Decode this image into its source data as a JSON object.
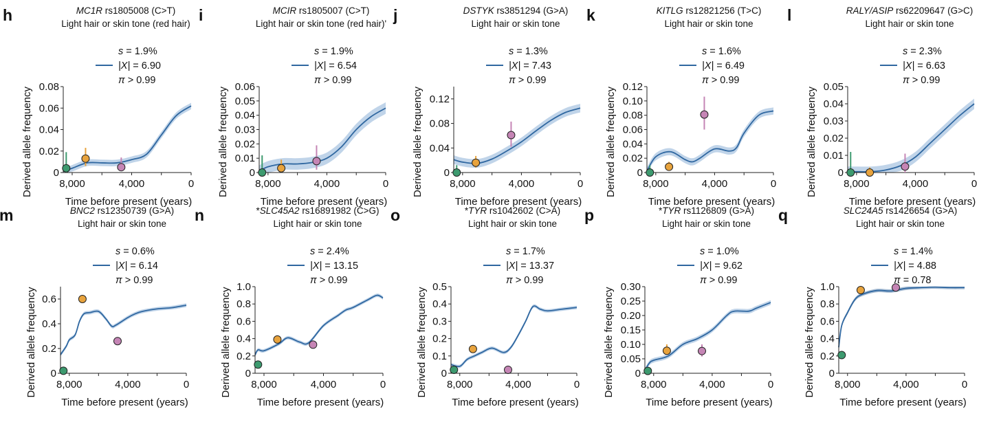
{
  "colors": {
    "line": "#2f67a0",
    "band": "#b9cfe7",
    "ancient_hg": "#3d9a6f",
    "farmer": "#e8a33d",
    "steppe": "#c585b5",
    "q_band": "#8a8a8a"
  },
  "chart_data": [
    {
      "type": "line",
      "panel": "h",
      "gene": "MC1R",
      "title_rest": " rs1805008 (C>T)",
      "subtitle": "Light hair or skin tone (red hair)",
      "stats": [
        "s = 1.9%",
        "|X| = 6.90",
        "π > 0.99"
      ],
      "xlabel": "Time before present (years)",
      "ylabel": "Derived allele frequency",
      "xlim": [
        8600,
        0
      ],
      "ylim": [
        0,
        0.08
      ],
      "xticks": [
        8000,
        4000,
        0
      ],
      "xtick_labels": [
        "8,000",
        "4,000",
        "0"
      ],
      "yticks": [
        0,
        0.02,
        0.04,
        0.06,
        0.08
      ],
      "ytick_labels": [
        "0",
        "0.02",
        "0.04",
        "0.06",
        "0.08"
      ],
      "curve": {
        "x": [
          8600,
          8000,
          7000,
          6000,
          5000,
          4000,
          3000,
          2000,
          1000,
          0
        ],
        "y": [
          0.001,
          0.004,
          0.009,
          0.009,
          0.009,
          0.012,
          0.017,
          0.035,
          0.053,
          0.062
        ],
        "ci_halfwidth": 0.003
      },
      "points": [
        {
          "x": 8400,
          "y": 0.004,
          "lo": 0,
          "hi": 0.019,
          "group": "ancient_hg"
        },
        {
          "x": 7100,
          "y": 0.013,
          "lo": 0.006,
          "hi": 0.023,
          "group": "farmer"
        },
        {
          "x": 4700,
          "y": 0.005,
          "lo": 0.002,
          "hi": 0.014,
          "group": "steppe"
        }
      ]
    },
    {
      "type": "line",
      "panel": "i",
      "gene": "MCIR",
      "title_rest": " rs1805007 (C>T)",
      "subtitle": "Light hair or skin tone (red hair)'",
      "stats": [
        "s = 1.9%",
        "|X| = 6.54",
        "π > 0.99"
      ],
      "xlabel": "Time before present (years)",
      "ylabel": "Derived allele frequency",
      "xlim": [
        8600,
        0
      ],
      "ylim": [
        0,
        0.06
      ],
      "xticks": [
        8000,
        4000,
        0
      ],
      "xtick_labels": [
        "8,000",
        "4,000",
        "0"
      ],
      "yticks": [
        0,
        0.01,
        0.02,
        0.03,
        0.04,
        0.05,
        0.06
      ],
      "ytick_labels": [
        "0",
        "0.01",
        "0.02",
        "0.03",
        "0.04",
        "0.05",
        "0.06"
      ],
      "curve": {
        "x": [
          8600,
          8000,
          7000,
          6000,
          5000,
          4000,
          3000,
          2000,
          1000,
          0
        ],
        "y": [
          0.001,
          0.004,
          0.006,
          0.006,
          0.007,
          0.01,
          0.018,
          0.03,
          0.039,
          0.045
        ],
        "ci_halfwidth": 0.004
      },
      "points": [
        {
          "x": 8400,
          "y": 0,
          "lo": 0,
          "hi": 0.012,
          "group": "ancient_hg"
        },
        {
          "x": 7100,
          "y": 0.003,
          "lo": 0.001,
          "hi": 0.009,
          "group": "farmer"
        },
        {
          "x": 4700,
          "y": 0.008,
          "lo": 0.002,
          "hi": 0.019,
          "group": "steppe"
        }
      ]
    },
    {
      "type": "line",
      "panel": "j",
      "gene": "DSTYK",
      "title_rest": " rs3851294 (G>A)",
      "subtitle": "Light hair or skin tone",
      "stats": [
        "s = 1.3%",
        "|X| = 7.43",
        "π > 0.99"
      ],
      "xlabel": "Time before present (years)",
      "ylabel": "Derived allele frequency",
      "xlim": [
        8600,
        0
      ],
      "ylim": [
        0,
        0.14
      ],
      "xticks": [
        8000,
        4000,
        0
      ],
      "xtick_labels": [
        "8,000",
        "4,000",
        "0"
      ],
      "yticks": [
        0,
        0.04,
        0.08,
        0.12
      ],
      "ytick_labels": [
        "0",
        "0.04",
        "0.08",
        "0.12"
      ],
      "curve": {
        "x": [
          8600,
          8000,
          7000,
          6000,
          5000,
          4000,
          3000,
          2000,
          1000,
          0
        ],
        "y": [
          0.021,
          0.017,
          0.015,
          0.022,
          0.035,
          0.05,
          0.068,
          0.085,
          0.098,
          0.105
        ],
        "ci_halfwidth": 0.007
      },
      "points": [
        {
          "x": 8400,
          "y": 0,
          "lo": 0,
          "hi": 0.012,
          "group": "ancient_hg"
        },
        {
          "x": 7100,
          "y": 0.016,
          "lo": 0.008,
          "hi": 0.027,
          "group": "farmer"
        },
        {
          "x": 4700,
          "y": 0.061,
          "lo": 0.042,
          "hi": 0.083,
          "group": "steppe"
        }
      ]
    },
    {
      "type": "line",
      "panel": "k",
      "gene": "KITLG",
      "title_rest": " rs12821256 (T>C)",
      "subtitle": "Light hair or skin tone",
      "stats": [
        "s = 1.6%",
        "|X| = 6.49",
        "π > 0.99"
      ],
      "xlabel": "Time before present (years)",
      "ylabel": "Derived allele frequency",
      "xlim": [
        8600,
        0
      ],
      "ylim": [
        0,
        0.12
      ],
      "xticks": [
        8000,
        4000,
        0
      ],
      "xtick_labels": [
        "8,000",
        "4,000",
        "0"
      ],
      "yticks": [
        0,
        0.02,
        0.04,
        0.06,
        0.08,
        0.1,
        0.12
      ],
      "ytick_labels": [
        "0",
        "0.02",
        "0.04",
        "0.06",
        "0.08",
        "0.10",
        "0.12"
      ],
      "curve": {
        "x": [
          8600,
          8000,
          7000,
          6000,
          5500,
          5000,
          4000,
          3000,
          2500,
          2000,
          1000,
          0
        ],
        "y": [
          0.002,
          0.022,
          0.029,
          0.018,
          0.015,
          0.02,
          0.033,
          0.03,
          0.035,
          0.055,
          0.08,
          0.086
        ],
        "ci_halfwidth": 0.005
      },
      "points": [
        {
          "x": 8400,
          "y": 0,
          "lo": 0,
          "hi": 0.01,
          "group": "ancient_hg"
        },
        {
          "x": 7100,
          "y": 0.008,
          "lo": 0.003,
          "hi": 0.015,
          "group": "farmer"
        },
        {
          "x": 4700,
          "y": 0.081,
          "lo": 0.06,
          "hi": 0.106,
          "group": "steppe"
        }
      ]
    },
    {
      "type": "line",
      "panel": "l",
      "gene": "RALY/ASIP",
      "title_rest": " rs62209647 (G>C)",
      "subtitle": "Light hair or skin tone",
      "stats": [
        "s = 2.3%",
        "|X| = 6.63",
        "π > 0.99"
      ],
      "xlabel": "Time before present (years)",
      "ylabel": "Derived allele frequency",
      "xlim": [
        8600,
        0
      ],
      "ylim": [
        0,
        0.05
      ],
      "xticks": [
        8000,
        4000,
        0
      ],
      "xtick_labels": [
        "8,000",
        "4,000",
        "0"
      ],
      "yticks": [
        0,
        0.01,
        0.02,
        0.03,
        0.04,
        0.05
      ],
      "ytick_labels": [
        "0",
        "0.01",
        "0.02",
        "0.03",
        "0.04",
        "0.05"
      ],
      "curve": {
        "x": [
          8600,
          8000,
          7000,
          6000,
          5000,
          4000,
          3000,
          2000,
          1000,
          0
        ],
        "y": [
          0.0005,
          0.0005,
          0.0005,
          0.0015,
          0.004,
          0.009,
          0.017,
          0.025,
          0.033,
          0.04
        ],
        "ci_halfwidth": 0.003
      },
      "points": [
        {
          "x": 8400,
          "y": 0,
          "lo": 0,
          "hi": 0.012,
          "group": "ancient_hg"
        },
        {
          "x": 7100,
          "y": 0,
          "lo": 0,
          "hi": 0.003,
          "group": "farmer"
        },
        {
          "x": 4700,
          "y": 0.0035,
          "lo": 0,
          "hi": 0.011,
          "group": "steppe"
        }
      ]
    },
    {
      "type": "line",
      "panel": "m",
      "gene": "BNC2",
      "title_rest": " rs12350739 (G>A)",
      "subtitle": "Light hair or skin tone",
      "stats": [
        "s = 0.6%",
        "|X| = 6.14",
        "π > 0.99"
      ],
      "xlabel": "Time before present (years)",
      "ylabel": "Derived allele frequency",
      "xlim": [
        8600,
        0
      ],
      "ylim": [
        0,
        0.7
      ],
      "xticks": [
        8000,
        4000,
        0
      ],
      "xtick_labels": [
        "8,000",
        "4,000",
        "0"
      ],
      "yticks": [
        0,
        0.2,
        0.4,
        0.6
      ],
      "ytick_labels": [
        "0",
        "0.2",
        "0.4",
        "0.6"
      ],
      "curve": {
        "x": [
          8600,
          8200,
          8000,
          7600,
          7300,
          7000,
          6600,
          6000,
          5500,
          5100,
          4800,
          4000,
          3500,
          3000,
          2000,
          1000,
          0
        ],
        "y": [
          0.15,
          0.22,
          0.27,
          0.31,
          0.42,
          0.48,
          0.49,
          0.5,
          0.44,
          0.38,
          0.39,
          0.45,
          0.48,
          0.5,
          0.52,
          0.53,
          0.55
        ],
        "ci_halfwidth": 0.015
      },
      "points": [
        {
          "x": 8400,
          "y": 0.02,
          "lo": 0.01,
          "hi": 0.03,
          "group": "ancient_hg"
        },
        {
          "x": 7100,
          "y": 0.6,
          "lo": 0.59,
          "hi": 0.61,
          "group": "farmer"
        },
        {
          "x": 4700,
          "y": 0.26,
          "lo": 0.24,
          "hi": 0.28,
          "group": "steppe"
        }
      ]
    },
    {
      "type": "line",
      "panel": "n",
      "gene": "SLC45A2",
      "title_prefix": "*",
      "title_rest": " rs16891982 (C>G)",
      "subtitle": "Light hair or skin tone",
      "stats": [
        "s = 2.4%",
        "|X| = 13.15",
        "π > 0.99"
      ],
      "xlabel": "Time before present (years)",
      "ylabel": "Derived allele frequency",
      "xlim": [
        8600,
        0
      ],
      "ylim": [
        0,
        1.0
      ],
      "xticks": [
        8000,
        4000,
        0
      ],
      "xtick_labels": [
        "8,000",
        "4,000",
        "0"
      ],
      "yticks": [
        0,
        0.2,
        0.4,
        0.6,
        0.8,
        1.0
      ],
      "ytick_labels": [
        "0",
        "0.2",
        "0.4",
        "0.6",
        "0.8",
        "1.0"
      ],
      "curve": {
        "x": [
          8600,
          8400,
          8000,
          7000,
          6400,
          5600,
          5000,
          4000,
          3000,
          2500,
          2000,
          1000,
          400,
          0
        ],
        "y": [
          0.21,
          0.27,
          0.26,
          0.34,
          0.41,
          0.36,
          0.35,
          0.55,
          0.67,
          0.73,
          0.76,
          0.85,
          0.9,
          0.87
        ],
        "ci_halfwidth": 0.02
      },
      "points": [
        {
          "x": 8400,
          "y": 0.1,
          "lo": 0.09,
          "hi": 0.11,
          "group": "ancient_hg"
        },
        {
          "x": 7100,
          "y": 0.39,
          "lo": 0.38,
          "hi": 0.4,
          "group": "farmer"
        },
        {
          "x": 4700,
          "y": 0.33,
          "lo": 0.32,
          "hi": 0.34,
          "group": "steppe"
        }
      ]
    },
    {
      "type": "line",
      "panel": "o",
      "gene": "TYR",
      "title_prefix": "*",
      "title_rest": " rs1042602 (C>A)",
      "subtitle": "Light hair or skin tone",
      "stats": [
        "s = 1.7%",
        "|X| = 13.37",
        "π > 0.99"
      ],
      "xlabel": "Time before present (years)",
      "ylabel": "Derived allele frequency",
      "xlim": [
        8600,
        0
      ],
      "ylim": [
        0,
        0.5
      ],
      "xticks": [
        8000,
        4000,
        0
      ],
      "xtick_labels": [
        "8,000",
        "4,000",
        "0"
      ],
      "yticks": [
        0,
        0.1,
        0.2,
        0.3,
        0.4,
        0.5
      ],
      "ytick_labels": [
        "0",
        "0.1",
        "0.2",
        "0.3",
        "0.4",
        "0.5"
      ],
      "curve": {
        "x": [
          8600,
          8000,
          7500,
          7000,
          6500,
          5800,
          5000,
          4500,
          4000,
          3500,
          3000,
          2500,
          2000,
          1000,
          0
        ],
        "y": [
          0.05,
          0.04,
          0.08,
          0.1,
          0.12,
          0.145,
          0.12,
          0.15,
          0.22,
          0.3,
          0.385,
          0.37,
          0.36,
          0.37,
          0.38
        ],
        "ci_halfwidth": 0.01
      },
      "points": [
        {
          "x": 8400,
          "y": 0.02,
          "lo": 0.015,
          "hi": 0.025,
          "group": "ancient_hg"
        },
        {
          "x": 7100,
          "y": 0.14,
          "lo": 0.13,
          "hi": 0.15,
          "group": "farmer"
        },
        {
          "x": 4700,
          "y": 0.02,
          "lo": 0.015,
          "hi": 0.025,
          "group": "steppe"
        }
      ]
    },
    {
      "type": "line",
      "panel": "p",
      "gene": "TYR",
      "title_prefix": "*",
      "title_rest": " rs1126809 (G>A)",
      "subtitle": "Light hair or skin tone",
      "stats": [
        "s = 1.0%",
        "|X| = 9.62",
        "π > 0.99"
      ],
      "xlabel": "Time before present (years)",
      "ylabel": "Derived allele frequency",
      "xlim": [
        8600,
        0
      ],
      "ylim": [
        0,
        0.3
      ],
      "xticks": [
        8000,
        4000,
        0
      ],
      "xtick_labels": [
        "8,000",
        "4,000",
        "0"
      ],
      "yticks": [
        0,
        0.05,
        0.1,
        0.15,
        0.2,
        0.25,
        0.3
      ],
      "ytick_labels": [
        "0",
        "0.05",
        "0.10",
        "0.15",
        "0.20",
        "0.25",
        "0.30"
      ],
      "curve": {
        "x": [
          8600,
          8300,
          8000,
          7000,
          6000,
          5000,
          4000,
          3000,
          2500,
          1500,
          1000,
          0
        ],
        "y": [
          0.01,
          0.035,
          0.045,
          0.06,
          0.1,
          0.12,
          0.15,
          0.2,
          0.215,
          0.215,
          0.225,
          0.245
        ],
        "ci_halfwidth": 0.008
      },
      "points": [
        {
          "x": 8400,
          "y": 0.008,
          "lo": 0.003,
          "hi": 0.015,
          "group": "ancient_hg"
        },
        {
          "x": 7100,
          "y": 0.078,
          "lo": 0.065,
          "hi": 0.1,
          "group": "farmer"
        },
        {
          "x": 4700,
          "y": 0.077,
          "lo": 0.058,
          "hi": 0.1,
          "group": "steppe"
        }
      ]
    },
    {
      "type": "line",
      "panel": "q",
      "gene": "SLC24A5",
      "title_rest": " rs1426654 (G>A)",
      "subtitle": "Light hair or skin tone",
      "stats": [
        "s = 1.4%",
        "|X| = 4.88",
        "π = 0.78"
      ],
      "xlabel": "Time before present (years)",
      "ylabel": "Derived allele frequency",
      "xlim": [
        8600,
        0
      ],
      "ylim": [
        0,
        1.0
      ],
      "xticks": [
        8000,
        4000,
        0
      ],
      "xtick_labels": [
        "8,000",
        "4,000",
        "0"
      ],
      "yticks": [
        0,
        0.2,
        0.4,
        0.6,
        0.8,
        1.0
      ],
      "ytick_labels": [
        "0",
        "0.2",
        "0.4",
        "0.6",
        "0.8",
        "1.0"
      ],
      "curve": {
        "x": [
          8600,
          8400,
          8000,
          7500,
          7000,
          6000,
          5000,
          4000,
          3000,
          2000,
          1000,
          0
        ],
        "y": [
          0.3,
          0.55,
          0.7,
          0.85,
          0.91,
          0.955,
          0.95,
          0.98,
          0.99,
          0.995,
          0.99,
          0.99
        ],
        "ci_halfwidth": 0.02
      },
      "points": [
        {
          "x": 8400,
          "y": 0.21,
          "lo": 0.18,
          "hi": 0.25,
          "group": "ancient_hg"
        },
        {
          "x": 7100,
          "y": 0.96,
          "lo": 0.95,
          "hi": 0.97,
          "group": "farmer"
        },
        {
          "x": 4700,
          "y": 0.99,
          "lo": 0.98,
          "hi": 1.0,
          "group": "steppe"
        }
      ]
    }
  ]
}
